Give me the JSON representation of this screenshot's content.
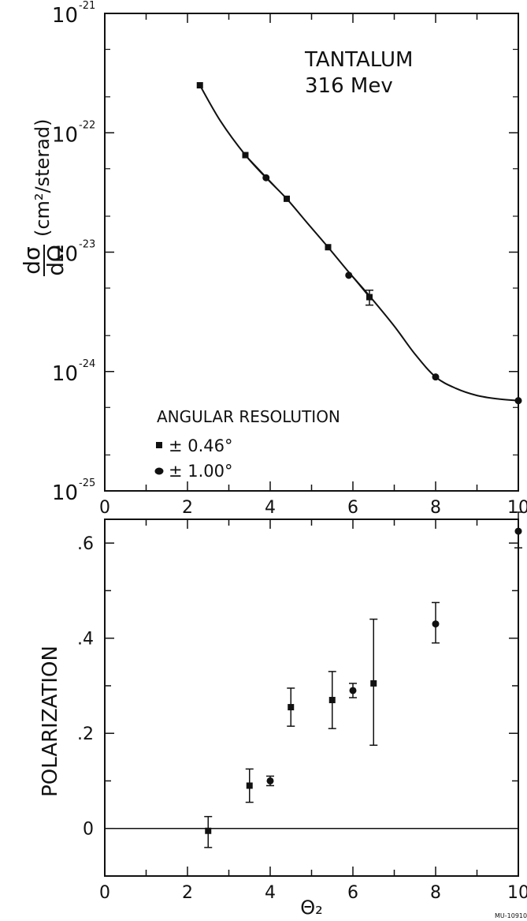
{
  "chart_data": [
    {
      "type": "line",
      "y_scale": "log",
      "xlim": [
        0,
        10
      ],
      "ylim": [
        1e-25,
        1e-21
      ],
      "x_ticks": [
        0,
        2,
        4,
        6,
        8,
        10
      ],
      "x_tick_labels": [
        "0",
        "2",
        "4",
        "6",
        "8",
        "10"
      ],
      "y_ticks": [
        1e-25,
        1e-24,
        1e-23,
        1e-22,
        1e-21
      ],
      "y_tick_labels": [
        {
          "base": "10",
          "exp": "-25"
        },
        {
          "base": "10",
          "exp": "-24"
        },
        {
          "base": "10",
          "exp": "-23"
        },
        {
          "base": "10",
          "exp": "-22"
        },
        {
          "base": "10",
          "exp": "-21"
        }
      ],
      "ylabel": {
        "numerator": "dσ",
        "denominator": "dΩ",
        "units": "(cm²/sterad)"
      },
      "annotation": [
        "TANTALUM",
        "316 Mev"
      ],
      "legend": {
        "title": "ANGULAR RESOLUTION",
        "placement": "bottom-left",
        "entries": [
          {
            "marker": "square",
            "label": "± 0.46°"
          },
          {
            "marker": "circle",
            "label": "± 1.00°"
          }
        ]
      },
      "series": [
        {
          "marker": "square",
          "x": [
            2.3,
            3.4,
            4.4,
            5.4,
            6.4
          ],
          "y": [
            2.5e-22,
            6.5e-23,
            2.8e-23,
            1.1e-23,
            4.2e-24
          ],
          "yerr_low": [
            null,
            null,
            null,
            null,
            3.6e-24
          ],
          "yerr_high": [
            null,
            null,
            null,
            null,
            4.8e-24
          ]
        },
        {
          "marker": "circle",
          "x": [
            3.9,
            5.9,
            8.0,
            10.0
          ],
          "y": [
            4.2e-23,
            6.4e-24,
            9e-25,
            5.7e-25
          ]
        }
      ],
      "fit_curve": {
        "x": [
          2.3,
          2.8,
          3.4,
          3.9,
          4.4,
          4.9,
          5.4,
          5.9,
          6.4,
          7.0,
          7.5,
          8.0,
          8.5,
          9.0,
          9.5,
          10.0
        ],
        "y": [
          2.5e-22,
          1.25e-22,
          6.5e-23,
          4.2e-23,
          2.8e-23,
          1.75e-23,
          1.1e-23,
          6.8e-24,
          4.3e-24,
          2.4e-24,
          1.4e-24,
          9e-25,
          7.2e-25,
          6.3e-25,
          5.9e-25,
          5.7e-25
        ]
      }
    },
    {
      "type": "scatter",
      "xlim": [
        0,
        10
      ],
      "ylim": [
        -0.1,
        0.65
      ],
      "x_ticks": [
        0,
        2,
        4,
        6,
        8,
        10
      ],
      "x_tick_labels": [
        "0",
        "2",
        "4",
        "6",
        "8",
        "10"
      ],
      "y_ticks": [
        0,
        0.2,
        0.4,
        0.6
      ],
      "y_tick_labels": [
        "0",
        ".2",
        ".4",
        ".6"
      ],
      "ylabel": "POLARIZATION",
      "xlabel": "Θ₂",
      "reference_line_y": 0,
      "series": [
        {
          "marker": "square",
          "x": [
            2.5,
            3.5,
            4.5,
            5.5,
            6.5
          ],
          "y": [
            -0.005,
            0.09,
            0.255,
            0.27,
            0.305
          ],
          "yerr_low": [
            -0.04,
            0.055,
            0.215,
            0.21,
            0.175
          ],
          "yerr_high": [
            0.025,
            0.125,
            0.295,
            0.33,
            0.44
          ]
        },
        {
          "marker": "circle",
          "x": [
            4.0,
            6.0,
            8.0,
            10.0
          ],
          "y": [
            0.1,
            0.29,
            0.43,
            0.625
          ],
          "yerr_low": [
            0.09,
            0.275,
            0.39,
            0.59
          ],
          "yerr_high": [
            0.11,
            0.305,
            0.475,
            0.665
          ]
        }
      ]
    }
  ],
  "figure_code": "MU-10910"
}
